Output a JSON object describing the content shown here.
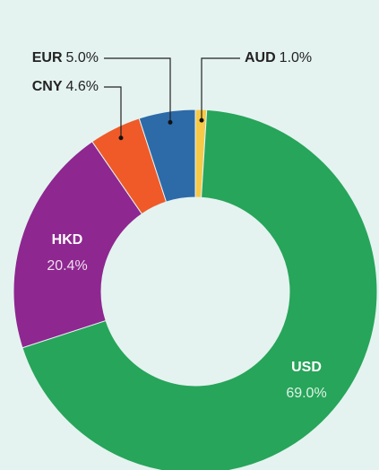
{
  "chart_data": {
    "type": "pie",
    "categories": [
      "AUD",
      "USD",
      "HKD",
      "CNY",
      "EUR"
    ],
    "values": [
      1.0,
      69.0,
      20.4,
      4.6,
      5.0
    ],
    "value_labels": [
      "1.0%",
      "69.0%",
      "20.4%",
      "4.6%",
      "5.0%"
    ],
    "colors": [
      "#f7c948",
      "#27a55a",
      "#8e2790",
      "#f05a28",
      "#2d6aa8"
    ],
    "donut": true
  }
}
